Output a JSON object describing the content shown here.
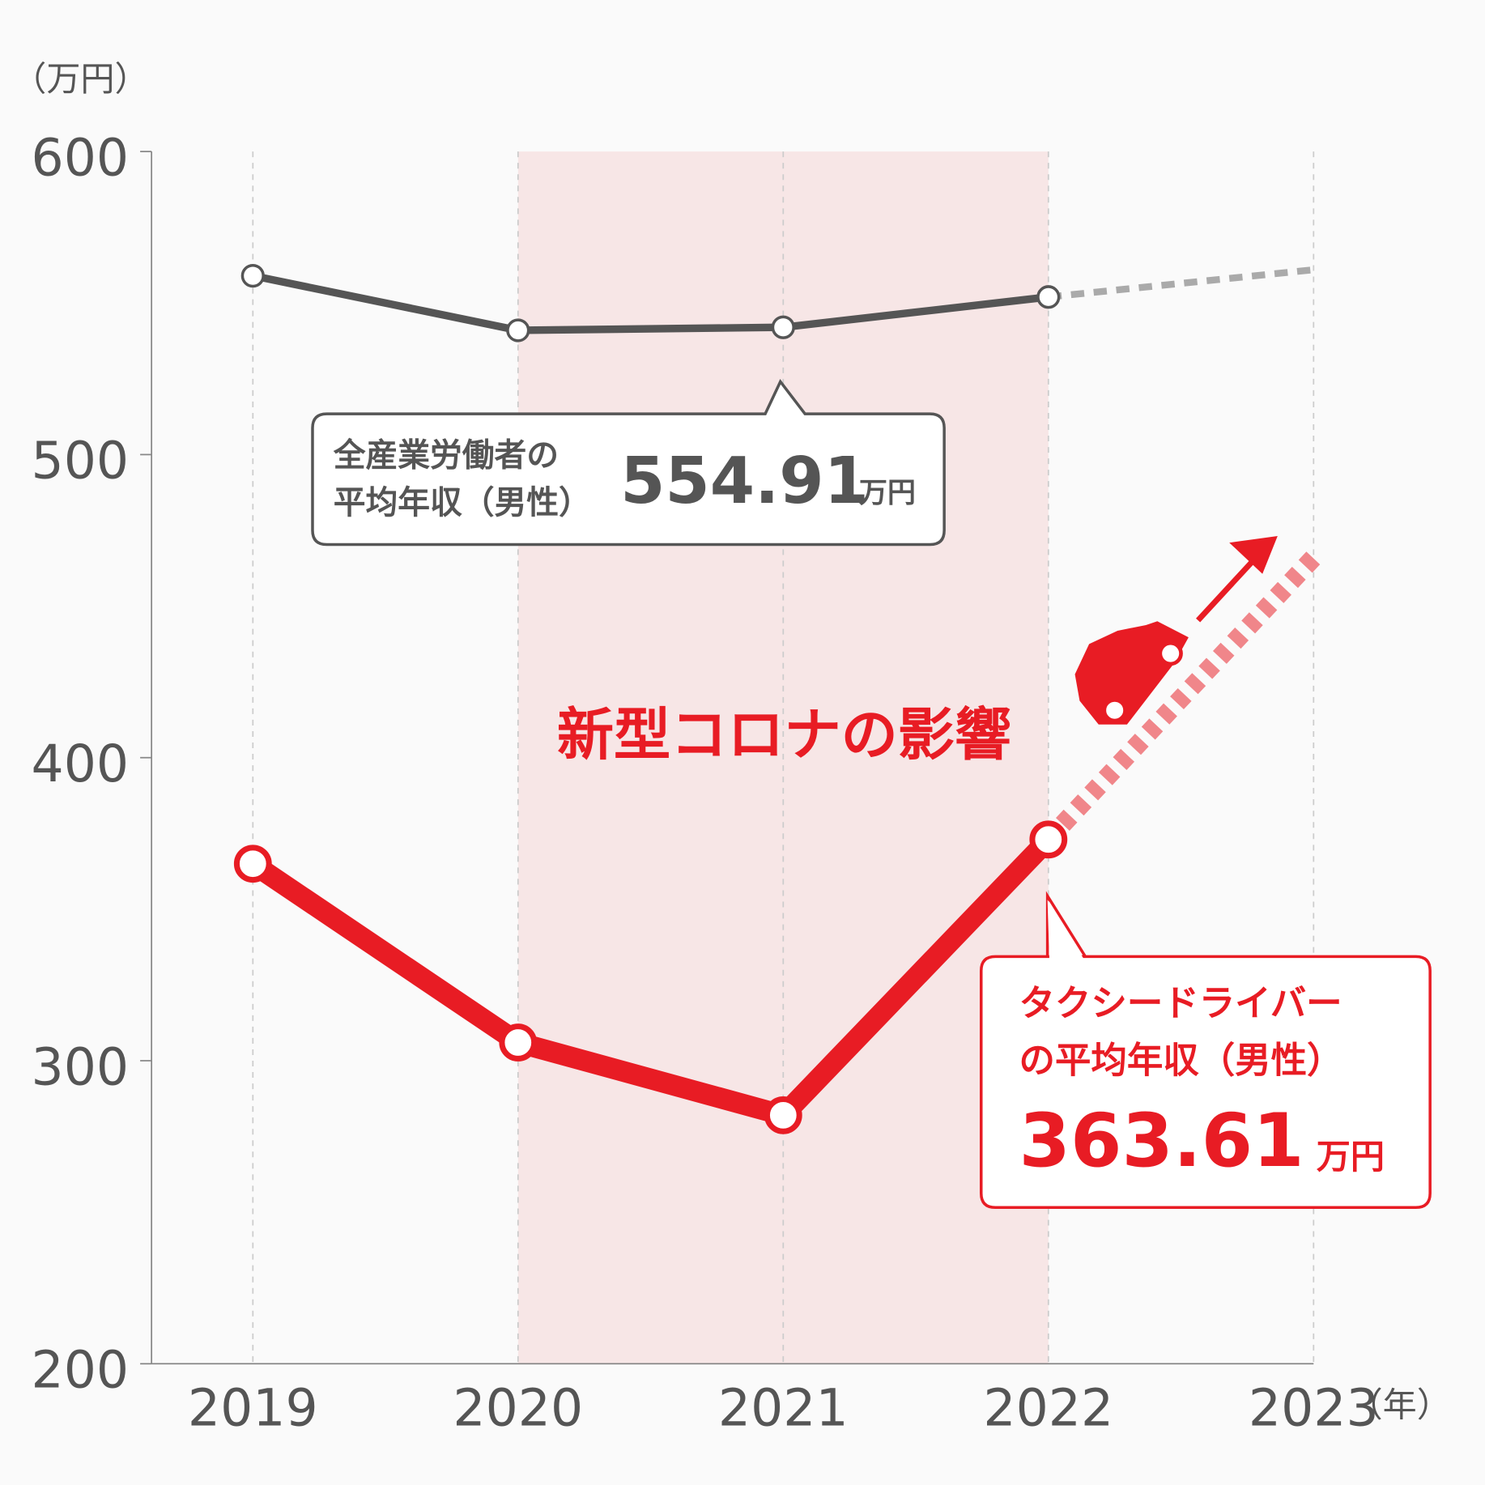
{
  "chart_data": {
    "type": "line",
    "y_label": "（万円）",
    "x_label": "（年）",
    "categories": [
      "2019",
      "2020",
      "2021",
      "2022",
      "2023"
    ],
    "series": [
      {
        "color": "#555555",
        "projection_color": "#aaaaaa",
        "width": 8,
        "values": [
          559,
          541,
          542,
          552,
          561
        ]
      },
      {
        "color": "#e81c24",
        "projection_color": "#f0868a",
        "width": 22,
        "values": [
          365,
          306,
          282,
          373,
          466
        ]
      }
    ],
    "projection_from": 3,
    "shade": [
      1,
      3
    ],
    "shade_color": "#f7e6e6",
    "ylim": [
      200,
      600
    ],
    "yticks": [
      200,
      300,
      400,
      500,
      600
    ],
    "grid": true,
    "annotations": {
      "covid": "新型コロナの影響",
      "all": {
        "line1": "全産業労働者の",
        "line2": "平均年収（男性）",
        "value": "554.91",
        "unit": "万円"
      },
      "taxi": {
        "line1": "タクシードライバー",
        "line2": "の平均年収（男性）",
        "value": "363.61",
        "unit": "万円"
      }
    }
  }
}
